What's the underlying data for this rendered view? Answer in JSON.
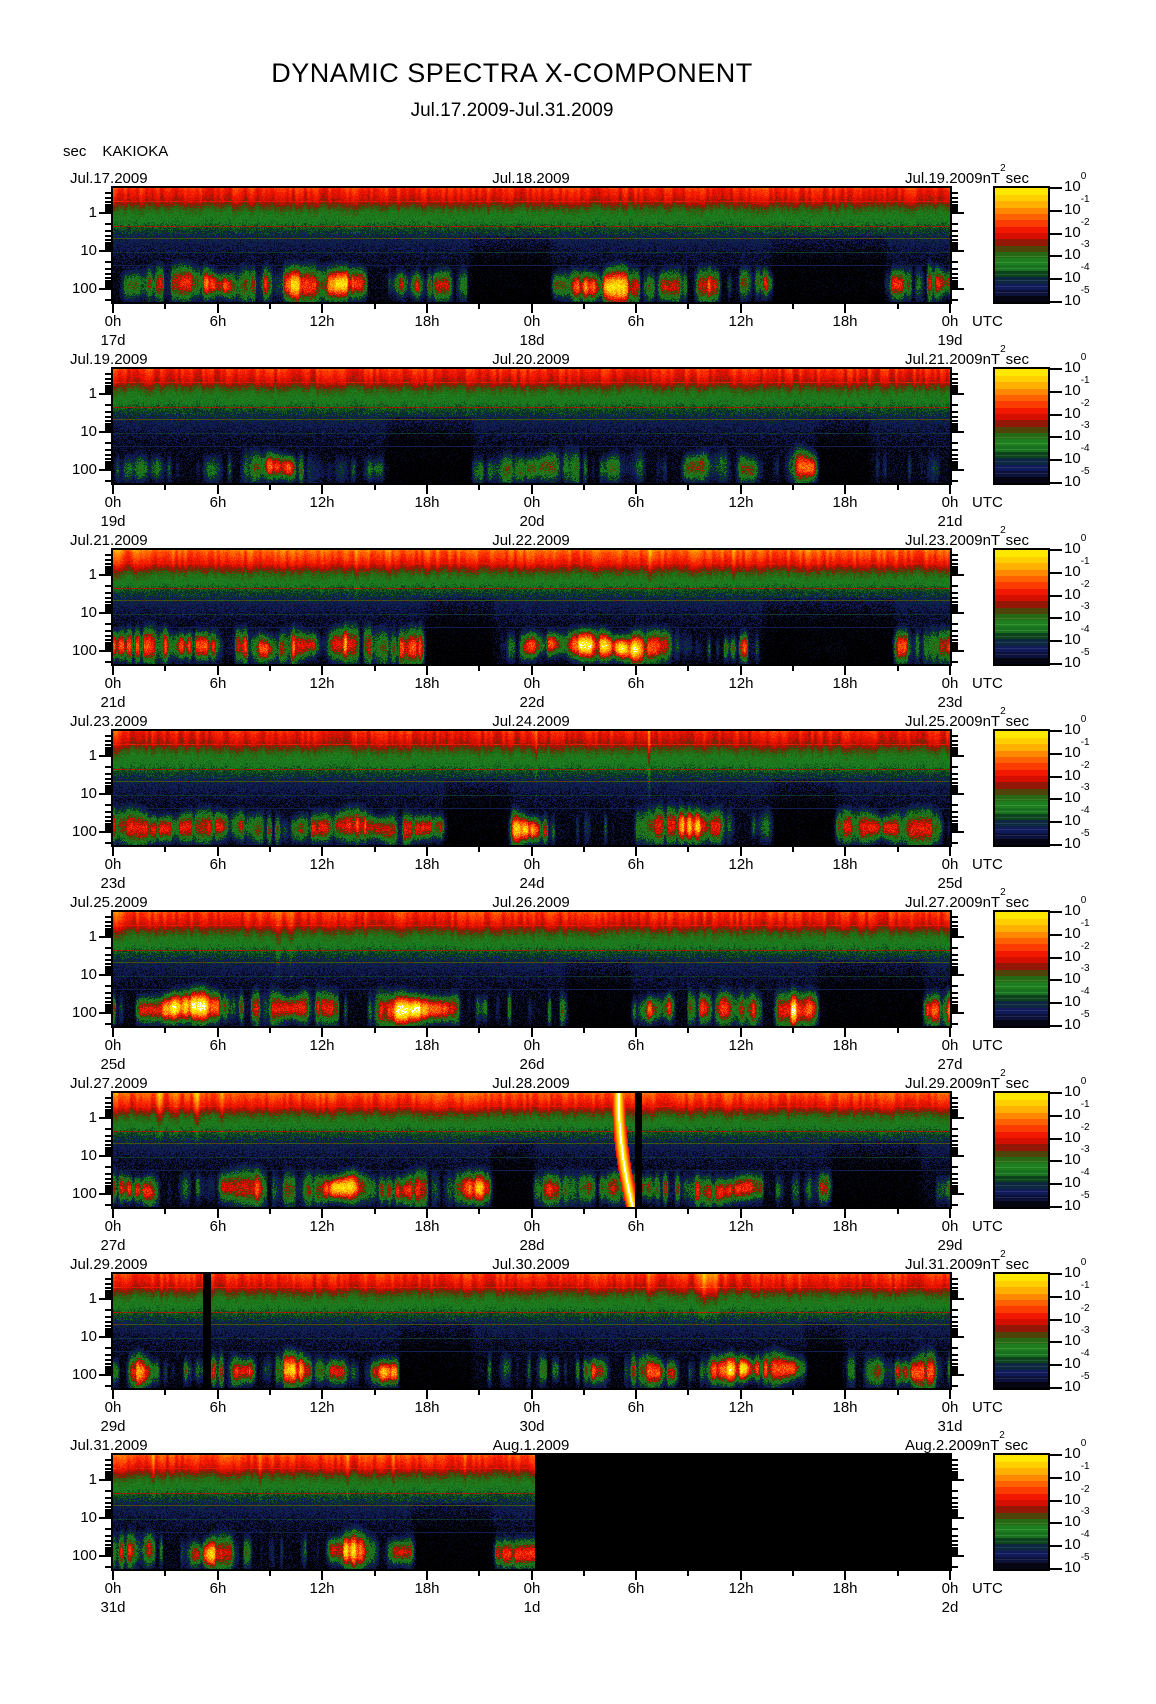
{
  "chart_data": {
    "type": "heatmap",
    "title": "DYNAMIC SPECTRA X-COMPONENT",
    "subtitle": "Jul.17.2009-Jul.31.2009",
    "station": "KAKIOKA",
    "x_axis": {
      "unit": "UTC",
      "span_hours": 48,
      "major_tick_hours": 6,
      "minor_tick_hours": 3,
      "hour_labels": [
        "0h",
        "6h",
        "12h",
        "18h",
        "0h",
        "6h",
        "12h",
        "18h",
        "0h"
      ],
      "day_label_hours": [
        0,
        24,
        48
      ]
    },
    "y_axis": {
      "unit": "sec",
      "scale": "log",
      "min_sec": 0.22,
      "max_sec": 220,
      "major_ticks": [
        1,
        10,
        100
      ],
      "minor_ticks": [
        0.3,
        0.4,
        0.5,
        0.6,
        0.7,
        0.8,
        0.9,
        2,
        3,
        4,
        5,
        6,
        7,
        8,
        9,
        20,
        30,
        40,
        50,
        60,
        70,
        80,
        90,
        200
      ]
    },
    "color_axis": {
      "scale": "log",
      "unit": {
        "prefix": "nT",
        "exponent": "2",
        "suffix": "sec"
      },
      "tick_labels": [
        {
          "base": "10",
          "exp": "0"
        },
        {
          "base": "10",
          "exp": "-1"
        },
        {
          "base": "10",
          "exp": "-2"
        },
        {
          "base": "10",
          "exp": "-3"
        },
        {
          "base": "10",
          "exp": "-4"
        },
        {
          "base": "10",
          "exp": "-5"
        }
      ],
      "palette_stops": [
        [
          -5.3,
          [
            0,
            0,
            0
          ]
        ],
        [
          -5.0,
          [
            2,
            2,
            6
          ]
        ],
        [
          -4.78,
          [
            8,
            10,
            34
          ]
        ],
        [
          -4.5,
          [
            16,
            24,
            80
          ]
        ],
        [
          -4.28,
          [
            18,
            28,
            96
          ]
        ],
        [
          -4.05,
          [
            12,
            40,
            60
          ]
        ],
        [
          -3.85,
          [
            10,
            56,
            28
          ]
        ],
        [
          -3.55,
          [
            22,
            110,
            30
          ]
        ],
        [
          -3.3,
          [
            30,
            130,
            32
          ]
        ],
        [
          -3.05,
          [
            30,
            112,
            24
          ]
        ],
        [
          -2.8,
          [
            52,
            92,
            14
          ]
        ],
        [
          -2.58,
          [
            96,
            52,
            8
          ]
        ],
        [
          -2.38,
          [
            150,
            22,
            6
          ]
        ],
        [
          -2.1,
          [
            215,
            15,
            0
          ]
        ],
        [
          -1.8,
          [
            245,
            25,
            0
          ]
        ],
        [
          -1.45,
          [
            255,
            72,
            0
          ]
        ],
        [
          -1.1,
          [
            255,
            120,
            0
          ]
        ],
        [
          -0.7,
          [
            255,
            176,
            0
          ]
        ],
        [
          -0.3,
          [
            255,
            220,
            0
          ]
        ],
        [
          0.0,
          [
            255,
            242,
            0
          ]
        ],
        [
          0.6,
          [
            255,
            255,
            255
          ]
        ]
      ]
    },
    "panels": [
      {
        "left_date": "Jul.17.2009",
        "center_date": "Jul.18.2009",
        "right_date": "Jul.19.2009",
        "day_labels": [
          "17d",
          "18d",
          "19d"
        ],
        "seed": 11,
        "features": {
          "activity": 1.0,
          "top_intensity": 1.0,
          "dark_spans": [
            [
              0.43,
              0.52
            ],
            [
              0.79,
              0.92
            ]
          ],
          "hot_spans": [
            [
              0.115,
              0.13
            ],
            [
              0.21,
              0.225
            ],
            [
              0.262,
              0.28
            ],
            [
              0.385,
              0.4
            ],
            [
              0.55,
              0.575
            ],
            [
              0.59,
              0.61
            ],
            [
              0.655,
              0.675
            ],
            [
              0.7,
              0.72
            ]
          ],
          "top_streaks": []
        }
      },
      {
        "left_date": "Jul.19.2009",
        "center_date": "Jul.20.2009",
        "right_date": "Jul.21.2009",
        "day_labels": [
          "19d",
          "20d",
          "21d"
        ],
        "seed": 22,
        "features": {
          "activity": 0.7,
          "top_intensity": 1.0,
          "blob_center": 0.87,
          "dark_spans": [
            [
              0.33,
              0.425
            ],
            [
              0.845,
              0.9
            ]
          ],
          "hot_spans": [
            [
              0.185,
              0.21
            ],
            [
              0.685,
              0.705
            ],
            [
              0.75,
              0.765
            ],
            [
              0.815,
              0.835
            ]
          ],
          "top_streaks": []
        }
      },
      {
        "left_date": "Jul.21.2009",
        "center_date": "Jul.22.2009",
        "right_date": "Jul.23.2009",
        "day_labels": [
          "21d",
          "22d",
          "23d"
        ],
        "seed": 33,
        "features": {
          "activity": 1.1,
          "top_intensity": 1.22,
          "dark_spans": [
            [
              0.375,
              0.45
            ],
            [
              0.78,
              0.93
            ]
          ],
          "hot_spans": [
            [
              0.215,
              0.235
            ],
            [
              0.265,
              0.285
            ],
            [
              0.555,
              0.6
            ],
            [
              0.605,
              0.625
            ]
          ],
          "top_streaks": [
            {
              "x": 0.25,
              "w": 0.003,
              "s": 0.6
            },
            {
              "x": 0.29,
              "w": 0.004,
              "s": 0.8
            },
            {
              "x": 0.33,
              "w": 0.003,
              "s": 0.7
            },
            {
              "x": 0.64,
              "w": 0.004,
              "s": 0.7
            },
            {
              "x": 0.74,
              "w": 0.003,
              "s": 0.6
            }
          ]
        }
      },
      {
        "left_date": "Jul.23.2009",
        "center_date": "Jul.24.2009",
        "right_date": "Jul.25.2009",
        "day_labels": [
          "23d",
          "24d",
          "25d"
        ],
        "seed": 44,
        "features": {
          "activity": 0.95,
          "top_intensity": 0.95,
          "dark_spans": [
            [
              0.4,
              0.47
            ],
            [
              0.79,
              0.86
            ]
          ],
          "hot_spans": [
            [
              0.27,
              0.3
            ],
            [
              0.305,
              0.335
            ],
            [
              0.48,
              0.5
            ],
            [
              0.68,
              0.7
            ]
          ],
          "top_streaks": [
            {
              "x": 0.64,
              "w": 0.0025,
              "s": 1.4,
              "deep": true
            },
            {
              "x": 0.505,
              "w": 0.002,
              "s": 0.6,
              "deep": true
            },
            {
              "x": 0.29,
              "w": 0.002,
              "s": 0.7
            }
          ]
        }
      },
      {
        "left_date": "Jul.25.2009",
        "center_date": "Jul.26.2009",
        "right_date": "Jul.27.2009",
        "day_labels": [
          "25d",
          "26d",
          "27d"
        ],
        "seed": 55,
        "features": {
          "activity": 1.15,
          "top_intensity": 1.05,
          "dark_spans": [
            [
              0.545,
              0.615
            ],
            [
              0.845,
              0.965
            ]
          ],
          "hot_spans": [
            [
              0.032,
              0.06
            ],
            [
              0.072,
              0.108
            ],
            [
              0.19,
              0.23
            ],
            [
              0.25,
              0.262
            ],
            [
              0.34,
              0.37
            ],
            [
              0.795,
              0.815
            ]
          ],
          "top_streaks": [
            {
              "x": 0.197,
              "w": 0.005,
              "s": 0.9,
              "deep": true
            },
            {
              "x": 0.212,
              "w": 0.004,
              "s": 0.7,
              "deep": true
            }
          ]
        }
      },
      {
        "left_date": "Jul.27.2009",
        "center_date": "Jul.28.2009",
        "right_date": "Jul.29.2009",
        "day_labels": [
          "27d",
          "28d",
          "29d"
        ],
        "seed": 66,
        "features": {
          "activity": 1.0,
          "top_intensity": 1.15,
          "dark_spans": [
            [
              0.455,
              0.5
            ],
            [
              0.86,
              0.96
            ]
          ],
          "hot_spans": [
            [
              0.13,
              0.17
            ],
            [
              0.26,
              0.285
            ],
            [
              0.42,
              0.44
            ]
          ],
          "top_streaks": [
            {
              "x": 0.055,
              "w": 0.006,
              "s": 0.9
            },
            {
              "x": 0.075,
              "w": 0.005,
              "s": 0.8
            },
            {
              "x": 0.1,
              "w": 0.006,
              "s": 0.9
            },
            {
              "x": 0.13,
              "w": 0.004,
              "s": 0.7
            },
            {
              "x": 0.52,
              "w": 0.003,
              "s": 0.6
            }
          ],
          "white_streak": 0.6035,
          "black_gaps": [
            [
              0.6225,
              0.631
            ]
          ]
        }
      },
      {
        "left_date": "Jul.29.2009",
        "center_date": "Jul.30.2009",
        "right_date": "Jul.31.2009",
        "day_labels": [
          "29d",
          "30d",
          "31d"
        ],
        "seed": 77,
        "features": {
          "activity": 1.1,
          "top_intensity": 1.05,
          "dark_spans": [
            [
              0.345,
              0.425
            ],
            [
              0.83,
              0.87
            ]
          ],
          "hot_spans": [
            [
              0.022,
              0.037
            ],
            [
              0.145,
              0.165
            ],
            [
              0.205,
              0.22
            ],
            [
              0.26,
              0.275
            ],
            [
              0.325,
              0.335
            ],
            [
              0.725,
              0.755
            ]
          ],
          "top_streaks": [
            {
              "x": 0.705,
              "w": 0.012,
              "s": 1.1
            },
            {
              "x": 0.72,
              "w": 0.006,
              "s": 0.9
            },
            {
              "x": 0.56,
              "w": 0.003,
              "s": 0.6
            },
            {
              "x": 0.64,
              "w": 0.0025,
              "s": 0.5
            },
            {
              "x": 0.82,
              "w": 0.003,
              "s": 0.6
            },
            {
              "x": 0.935,
              "w": 0.0035,
              "s": 0.7
            }
          ],
          "black_gaps": [
            [
              0.1075,
              0.116
            ]
          ]
        }
      },
      {
        "left_date": "Jul.31.2009",
        "center_date": "Aug.1.2009",
        "right_date": "Aug.2.2009",
        "day_labels": [
          "31d",
          "1d",
          "2d"
        ],
        "seed": 88,
        "features": {
          "activity": 1.0,
          "top_intensity": 1.1,
          "dark_spans": [
            [
              0.36,
              0.45
            ]
          ],
          "hot_spans": [
            [
              0.115,
              0.14
            ],
            [
              0.26,
              0.3
            ],
            [
              0.335,
              0.355
            ]
          ],
          "top_streaks": [
            {
              "x": 0.048,
              "w": 0.003,
              "s": 0.9
            },
            {
              "x": 0.175,
              "w": 0.0035,
              "s": 1.0
            },
            {
              "x": 0.28,
              "w": 0.003,
              "s": 0.8
            },
            {
              "x": 0.335,
              "w": 0.0025,
              "s": 0.7
            },
            {
              "x": 0.42,
              "w": 0.0025,
              "s": 0.6
            }
          ],
          "no_data_from": 0.503
        }
      }
    ]
  }
}
